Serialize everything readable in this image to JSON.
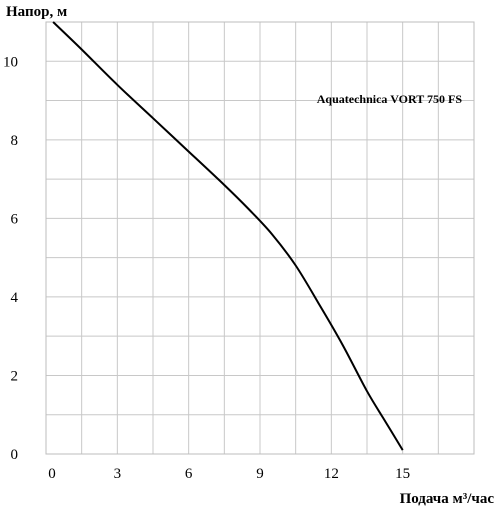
{
  "chart_data": {
    "type": "line",
    "title": "",
    "ylabel": "Напор, м",
    "xlabel": "Подача  м³/час",
    "xlim": [
      0,
      18
    ],
    "ylim": [
      0,
      11
    ],
    "x_ticks": [
      0,
      3,
      6,
      9,
      12,
      15
    ],
    "y_ticks": [
      0,
      2,
      4,
      6,
      8,
      10
    ],
    "x_tick_labels": [
      "0",
      "3",
      "6",
      "9",
      "12",
      "15"
    ],
    "y_tick_labels": [
      "0",
      "2",
      "4",
      "6",
      "8",
      "10"
    ],
    "grid": true,
    "legend_position": "top-right",
    "series": [
      {
        "name": "Aquatechnica VORT 750 FS",
        "color": "#000000",
        "x": [
          0.3,
          1.5,
          3.0,
          4.5,
          6.0,
          7.5,
          8.5,
          9.5,
          10.5,
          11.5,
          12.5,
          13.5,
          14.3,
          15.0
        ],
        "y": [
          11.0,
          10.3,
          9.4,
          8.55,
          7.7,
          6.85,
          6.25,
          5.6,
          4.8,
          3.8,
          2.75,
          1.6,
          0.8,
          0.1
        ]
      }
    ]
  }
}
